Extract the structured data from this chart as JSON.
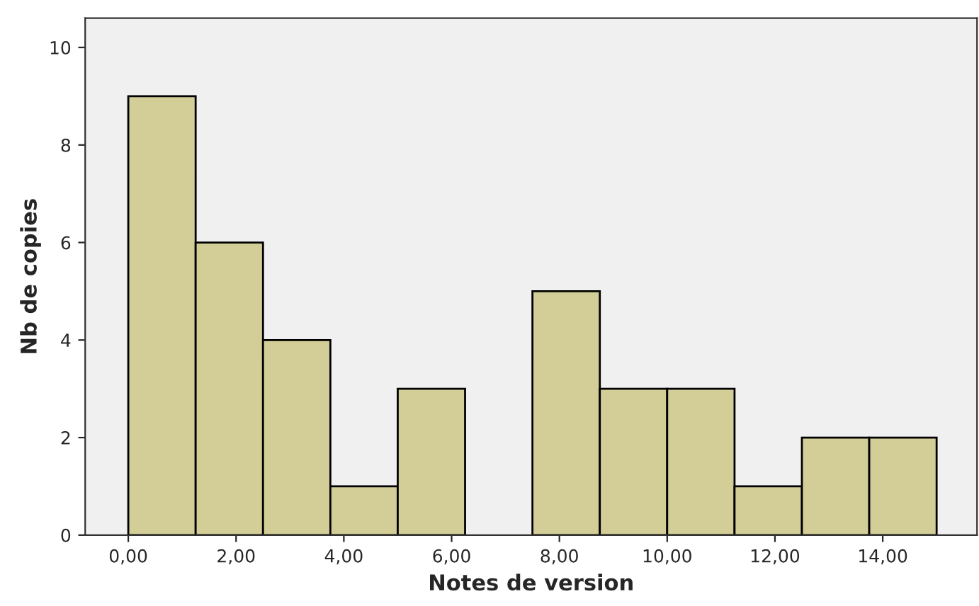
{
  "chart_data": {
    "type": "histogram",
    "xlabel": "Notes de version",
    "ylabel": "Nb de copies",
    "bins": [
      0,
      1.25,
      2.5,
      3.75,
      5,
      6.25,
      7.5,
      8.75,
      10,
      11.25,
      12.5,
      13.75,
      15
    ],
    "values": [
      9,
      6,
      4,
      1,
      3,
      0,
      5,
      3,
      3,
      1,
      2,
      2
    ],
    "color": "#d3ce97",
    "xlim": [
      -0.8,
      15.75
    ],
    "ylim": [
      0,
      10.6
    ],
    "xticks": [
      {
        "value": 0,
        "label": "0,00"
      },
      {
        "value": 2,
        "label": "2,00"
      },
      {
        "value": 4,
        "label": "4,00"
      },
      {
        "value": 6,
        "label": "6,00"
      },
      {
        "value": 8,
        "label": "8,00"
      },
      {
        "value": 10,
        "label": "10,00"
      },
      {
        "value": 12,
        "label": "12,00"
      },
      {
        "value": 14,
        "label": "14,00"
      }
    ],
    "yticks": [
      0,
      2,
      4,
      6,
      8,
      10
    ],
    "grid": false
  }
}
